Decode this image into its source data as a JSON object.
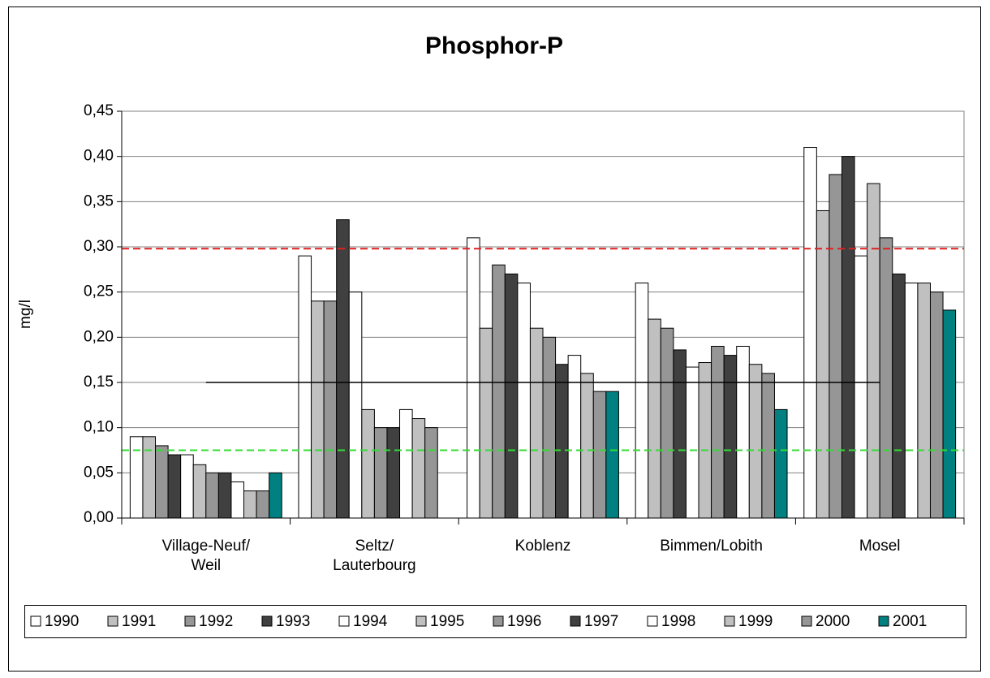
{
  "chart_data": {
    "type": "bar",
    "title": "Phosphor-P",
    "y_label": "mg/l",
    "categories": [
      "Village-Neuf/\nWeil",
      "Seltz/\nLauterbourg",
      "Koblenz",
      "Bimmen/Lobith",
      "Mosel"
    ],
    "series": [
      {
        "name": "1990",
        "color": "#ffffff",
        "values": [
          0.09,
          0.29,
          0.31,
          0.26,
          0.41
        ]
      },
      {
        "name": "1991",
        "color": "#c0c0c0",
        "values": [
          0.09,
          0.24,
          0.21,
          0.22,
          0.34
        ]
      },
      {
        "name": "1992",
        "color": "#969696",
        "values": [
          0.08,
          0.24,
          0.28,
          0.21,
          0.38
        ]
      },
      {
        "name": "1993",
        "color": "#404040",
        "values": [
          0.07,
          0.33,
          0.27,
          0.186,
          0.4
        ]
      },
      {
        "name": "1994",
        "color": "#ffffff",
        "values": [
          0.07,
          0.25,
          0.26,
          0.167,
          0.29
        ]
      },
      {
        "name": "1995",
        "color": "#c0c0c0",
        "values": [
          0.059,
          0.12,
          0.21,
          0.172,
          0.37
        ]
      },
      {
        "name": "1996",
        "color": "#969696",
        "values": [
          0.05,
          0.1,
          0.2,
          0.19,
          0.31
        ]
      },
      {
        "name": "1997",
        "color": "#404040",
        "values": [
          0.05,
          0.1,
          0.17,
          0.18,
          0.27
        ]
      },
      {
        "name": "1998",
        "color": "#ffffff",
        "values": [
          0.04,
          0.12,
          0.18,
          0.19,
          0.26
        ]
      },
      {
        "name": "1999",
        "color": "#c0c0c0",
        "values": [
          0.03,
          0.11,
          0.16,
          0.17,
          0.26
        ]
      },
      {
        "name": "2000",
        "color": "#969696",
        "values": [
          0.03,
          0.1,
          0.14,
          0.16,
          0.25
        ]
      },
      {
        "name": "2001",
        "color": "#008080",
        "values": [
          0.05,
          null,
          0.14,
          0.12,
          0.23
        ]
      }
    ],
    "ylim": [
      0,
      0.45
    ],
    "yticks": [
      {
        "value": 0,
        "label": "0,00"
      },
      {
        "value": 0.05,
        "label": "0,05"
      },
      {
        "value": 0.1,
        "label": "0,10"
      },
      {
        "value": 0.15,
        "label": "0,15"
      },
      {
        "value": 0.2,
        "label": "0,20"
      },
      {
        "value": 0.25,
        "label": "0,25"
      },
      {
        "value": 0.3,
        "label": "0,30"
      },
      {
        "value": 0.35,
        "label": "0,35"
      },
      {
        "value": 0.4,
        "label": "0,40"
      },
      {
        "value": 0.45,
        "label": "0,45"
      }
    ],
    "grid": true,
    "reference_lines": [
      {
        "value": 0.298,
        "color": "#e02020",
        "dashed": true
      },
      {
        "value": 0.075,
        "color": "#33dd33",
        "dashed": true
      },
      {
        "value": 0.15,
        "color": "#000000",
        "dashed": false
      }
    ],
    "legend": "bottom"
  }
}
